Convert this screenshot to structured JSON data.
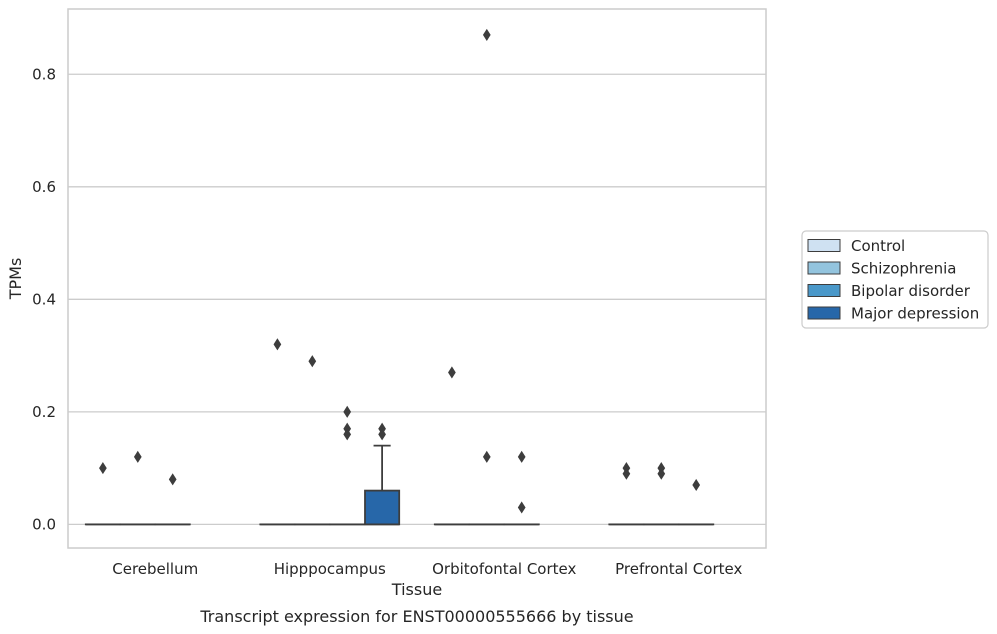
{
  "chart_data": {
    "type": "box",
    "title": "",
    "caption": "Transcript expression for ENST00000555666 by tissue",
    "xlabel": "Tissue",
    "ylabel": "TPMs",
    "ylim": [
      -0.042,
      0.916
    ],
    "yticks": [
      0.0,
      0.2,
      0.4,
      0.6,
      0.8
    ],
    "ytick_labels": [
      "0.0",
      "0.2",
      "0.4",
      "0.6",
      "0.8"
    ],
    "grid": "horizontal",
    "legend_position": "right",
    "categories": [
      "Cerebellum",
      "Hipppocampus",
      "Orbitofontal Cortex",
      "Prefrontal Cortex"
    ],
    "series": [
      {
        "name": "Control",
        "color": "#cfe1f2",
        "boxes": [
          {
            "q1": 0,
            "median": 0,
            "q3": 0,
            "whisker_low": 0,
            "whisker_high": 0,
            "outliers": [
              0.1
            ]
          },
          {
            "q1": 0,
            "median": 0,
            "q3": 0,
            "whisker_low": 0,
            "whisker_high": 0,
            "outliers": [
              0.32
            ]
          },
          {
            "q1": 0,
            "median": 0,
            "q3": 0,
            "whisker_low": 0,
            "whisker_high": 0,
            "outliers": [
              0.27
            ]
          },
          {
            "q1": 0,
            "median": 0,
            "q3": 0,
            "whisker_low": 0,
            "whisker_high": 0,
            "outliers": [
              0.1,
              0.09
            ]
          }
        ]
      },
      {
        "name": "Schizophrenia",
        "color": "#93c4de",
        "boxes": [
          {
            "q1": 0,
            "median": 0,
            "q3": 0,
            "whisker_low": 0,
            "whisker_high": 0,
            "outliers": [
              0.12
            ]
          },
          {
            "q1": 0,
            "median": 0,
            "q3": 0,
            "whisker_low": 0,
            "whisker_high": 0,
            "outliers": [
              0.29
            ]
          },
          {
            "q1": 0,
            "median": 0,
            "q3": 0,
            "whisker_low": 0,
            "whisker_high": 0,
            "outliers": [
              0.87,
              0.12
            ]
          },
          {
            "q1": 0,
            "median": 0,
            "q3": 0,
            "whisker_low": 0,
            "whisker_high": 0,
            "outliers": [
              0.1,
              0.09
            ]
          }
        ]
      },
      {
        "name": "Bipolar disorder",
        "color": "#4a98c9",
        "boxes": [
          {
            "q1": 0,
            "median": 0,
            "q3": 0,
            "whisker_low": 0,
            "whisker_high": 0,
            "outliers": [
              0.08
            ]
          },
          {
            "q1": 0,
            "median": 0,
            "q3": 0,
            "whisker_low": 0,
            "whisker_high": 0,
            "outliers": [
              0.2,
              0.17,
              0.16
            ]
          },
          {
            "q1": 0,
            "median": 0,
            "q3": 0,
            "whisker_low": 0,
            "whisker_high": 0,
            "outliers": [
              0.12,
              0.03
            ]
          },
          {
            "q1": 0,
            "median": 0,
            "q3": 0,
            "whisker_low": 0,
            "whisker_high": 0,
            "outliers": [
              0.07
            ]
          }
        ]
      },
      {
        "name": "Major depression",
        "color": "#2767a9",
        "boxes": [
          null,
          {
            "q1": 0,
            "median": 0,
            "q3": 0.06,
            "whisker_low": 0,
            "whisker_high": 0.14,
            "outliers": [
              0.17,
              0.16
            ]
          },
          null,
          null
        ]
      }
    ]
  }
}
